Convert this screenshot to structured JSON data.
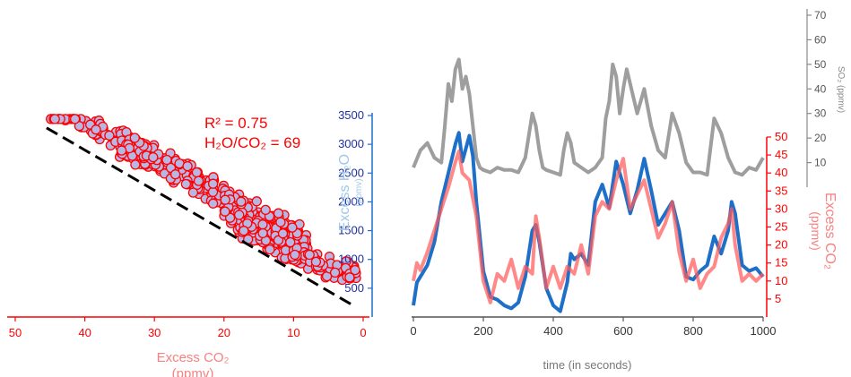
{
  "colors": {
    "co2": "#ff0000",
    "co2_light": "#f88080",
    "h2o": "#1e6fc8",
    "h2o_axis": "#1f2fa0",
    "h2o_label": "#9ec7ea",
    "so2": "#9e9e9e",
    "scatter_fill": "#b7b7e4",
    "fit": "#000000"
  },
  "chart_data": [
    {
      "type": "scatter",
      "annotation": {
        "r2": "R² = 0.75",
        "ratio": "H₂O/CO₂ = 69"
      },
      "xlabel": "Excess CO₂",
      "xlabel_unit": "(ppmv)",
      "ylabel": "Excess H₂O",
      "ylabel_unit": "(ppmv)",
      "xlim": [
        50,
        0
      ],
      "ylim": [
        0,
        3500
      ],
      "x_ticks": [
        50,
        40,
        30,
        20,
        10,
        0
      ],
      "y_ticks": [
        500,
        1000,
        1500,
        2000,
        2500,
        3000,
        3500
      ],
      "grid": false,
      "fit_line": {
        "x": [
          45.5,
          1.5
        ],
        "y": [
          3200,
          200
        ]
      },
      "point_clusters": [
        {
          "x_range": [
            32,
            45
          ],
          "y_center_at_x_min": 2800,
          "slope": 62,
          "spread": 180,
          "n": 90
        },
        {
          "x_range": [
            20,
            35
          ],
          "y_center_at_x_min": 2050,
          "slope": 62,
          "spread": 280,
          "n": 220
        },
        {
          "x_range": [
            8,
            20
          ],
          "y_center_at_x_min": 1150,
          "slope": 60,
          "spread": 420,
          "n": 260
        },
        {
          "x_range": [
            1,
            8
          ],
          "y_center_at_x_min": 700,
          "slope": 40,
          "spread": 220,
          "n": 60
        }
      ]
    },
    {
      "type": "line",
      "xlabel": "time (in seconds)",
      "xlim": [
        0,
        1000
      ],
      "x_ticks": [
        0,
        200,
        400,
        600,
        800,
        1000
      ],
      "grid": false,
      "axes": {
        "h2o": {
          "range": [
            0,
            3500
          ],
          "ticks": [
            500,
            1000,
            1500,
            2000,
            2500,
            3000,
            3500
          ]
        },
        "co2": {
          "label": "Excess CO₂",
          "unit": "(ppmv)",
          "range": [
            0,
            50
          ],
          "ticks": [
            5,
            10,
            15,
            20,
            25,
            30,
            35,
            40,
            45,
            50
          ]
        },
        "so2": {
          "label": "SO₂ (ppmv)",
          "range": [
            0,
            70
          ],
          "ticks": [
            10,
            20,
            30,
            40,
            50,
            60,
            70
          ]
        }
      },
      "series": [
        {
          "key": "so2",
          "x": [
            0,
            20,
            40,
            60,
            80,
            90,
            100,
            110,
            120,
            130,
            140,
            150,
            160,
            170,
            180,
            190,
            200,
            220,
            240,
            260,
            280,
            300,
            320,
            340,
            350,
            360,
            370,
            380,
            400,
            420,
            430,
            440,
            450,
            460,
            480,
            500,
            520,
            540,
            550,
            560,
            570,
            580,
            590,
            600,
            610,
            620,
            640,
            660,
            680,
            700,
            720,
            740,
            760,
            780,
            800,
            820,
            840,
            860,
            880,
            900,
            920,
            940,
            960,
            980,
            1000
          ],
          "y": [
            8,
            15,
            18,
            12,
            10,
            25,
            42,
            35,
            48,
            52,
            40,
            45,
            38,
            25,
            12,
            8,
            7,
            6,
            8,
            7,
            7,
            6,
            12,
            30,
            25,
            15,
            8,
            7,
            6,
            5,
            15,
            22,
            18,
            10,
            8,
            6,
            8,
            12,
            28,
            35,
            50,
            45,
            30,
            40,
            48,
            42,
            30,
            40,
            25,
            15,
            12,
            30,
            22,
            10,
            6,
            6,
            5,
            28,
            22,
            12,
            6,
            5,
            8,
            7,
            12
          ]
        },
        {
          "key": "h2o",
          "x": [
            0,
            10,
            20,
            40,
            60,
            80,
            100,
            120,
            130,
            140,
            160,
            170,
            180,
            200,
            220,
            240,
            260,
            280,
            300,
            320,
            340,
            350,
            360,
            380,
            400,
            420,
            440,
            450,
            460,
            480,
            500,
            520,
            540,
            560,
            580,
            600,
            620,
            640,
            660,
            680,
            700,
            720,
            740,
            760,
            780,
            800,
            820,
            840,
            860,
            880,
            900,
            910,
            920,
            940,
            960,
            980,
            1000
          ],
          "y": [
            200,
            600,
            700,
            900,
            1300,
            2000,
            2500,
            3000,
            3200,
            2700,
            3150,
            2800,
            2000,
            800,
            350,
            300,
            200,
            150,
            250,
            700,
            1500,
            1600,
            1300,
            500,
            200,
            100,
            600,
            1100,
            1000,
            1100,
            900,
            2000,
            2300,
            1900,
            2700,
            2300,
            1800,
            2200,
            2750,
            2200,
            1600,
            1800,
            2000,
            1500,
            700,
            650,
            800,
            900,
            1400,
            1100,
            1500,
            2000,
            1800,
            900,
            800,
            850,
            700
          ]
        },
        {
          "key": "co2",
          "x": [
            0,
            10,
            20,
            40,
            60,
            80,
            100,
            120,
            130,
            140,
            160,
            180,
            200,
            220,
            240,
            260,
            280,
            300,
            320,
            340,
            350,
            360,
            380,
            400,
            420,
            440,
            460,
            480,
            500,
            520,
            540,
            560,
            580,
            600,
            620,
            640,
            660,
            680,
            700,
            720,
            740,
            760,
            780,
            800,
            820,
            840,
            860,
            880,
            900,
            910,
            920,
            940,
            960,
            980,
            1000
          ],
          "y": [
            10,
            15,
            13,
            18,
            24,
            30,
            36,
            43,
            46,
            40,
            38,
            28,
            10,
            4,
            12,
            10,
            16,
            8,
            14,
            12,
            28,
            22,
            8,
            14,
            8,
            14,
            12,
            20,
            12,
            28,
            32,
            30,
            38,
            44,
            30,
            34,
            38,
            30,
            22,
            26,
            32,
            18,
            10,
            16,
            8,
            12,
            14,
            22,
            26,
            30,
            20,
            10,
            12,
            10,
            12
          ]
        }
      ]
    }
  ]
}
